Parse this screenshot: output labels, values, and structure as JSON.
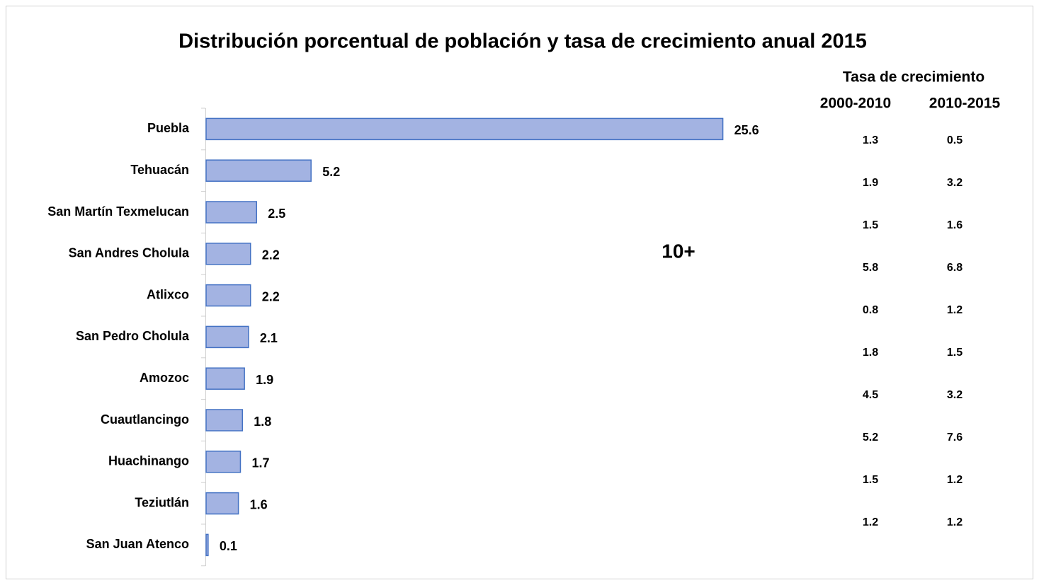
{
  "chart_data": {
    "type": "barh",
    "title": "Distribución porcentual de población y tasa de crecimiento anual 2015",
    "categories": [
      "Puebla",
      "Tehuacán",
      "San Martín Texmelucan",
      "San Andres Cholula",
      "Atlixco",
      "San Pedro Cholula",
      "Amozoc",
      "Cuautlancingo",
      "Huachinango",
      "Teziutlán",
      "San Juan Atenco"
    ],
    "values": [
      25.6,
      5.2,
      2.5,
      2.2,
      2.2,
      2.1,
      1.9,
      1.8,
      1.7,
      1.6,
      0.1
    ],
    "color": "#a3b3e2",
    "edge_color": "#4472c4",
    "xlim": [
      0,
      30
    ],
    "annotation": "10+"
  },
  "growth_table": {
    "title": "Tasa de crecimiento",
    "columns": [
      "2000-2010",
      "2010-2015"
    ],
    "rows": [
      [
        1.3,
        0.5
      ],
      [
        1.9,
        3.2
      ],
      [
        1.5,
        1.6
      ],
      [
        5.8,
        6.8
      ],
      [
        0.8,
        1.2
      ],
      [
        1.8,
        1.5
      ],
      [
        4.5,
        3.2
      ],
      [
        5.2,
        7.6
      ],
      [
        1.5,
        1.2
      ],
      [
        1.2,
        1.2
      ]
    ]
  }
}
